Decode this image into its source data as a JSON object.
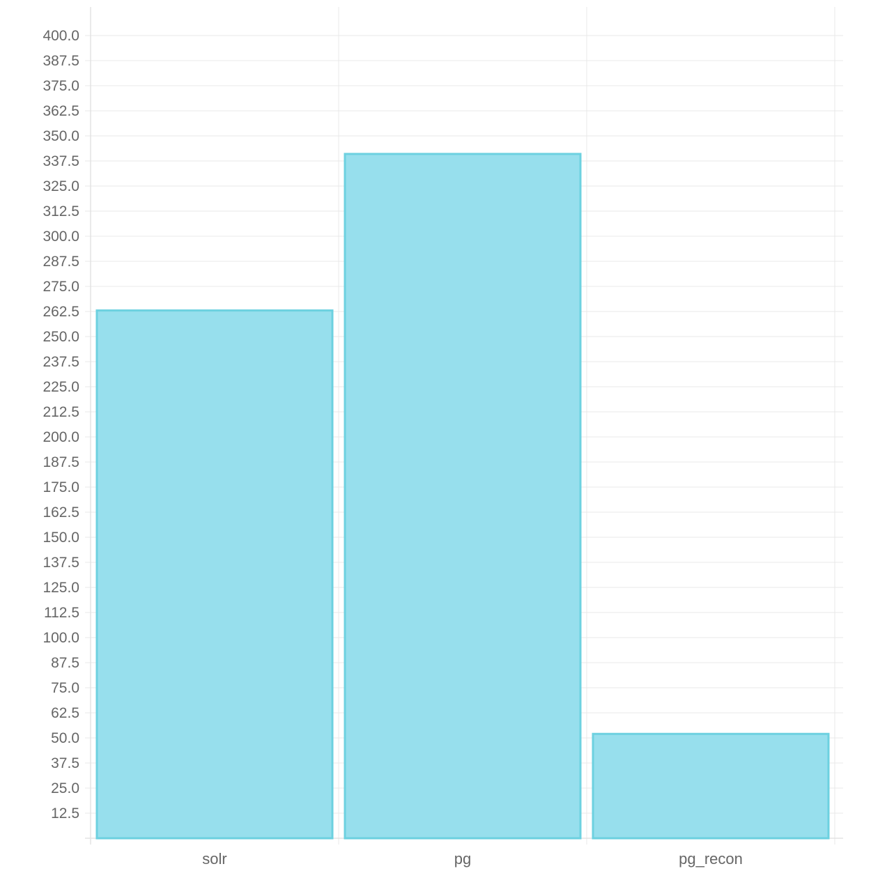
{
  "chart_data": {
    "type": "bar",
    "title": "",
    "xlabel": "",
    "ylabel": "",
    "categories": [
      "solr",
      "pg",
      "pg_recon"
    ],
    "series": [
      {
        "values": [
          263,
          341,
          52
        ]
      }
    ],
    "ylim": [
      0,
      400
    ],
    "ytick_step": 12.5,
    "ytick_labels": [
      "12.5",
      "25.0",
      "37.5",
      "50.0",
      "62.5",
      "75.0",
      "87.5",
      "100.0",
      "112.5",
      "125.0",
      "137.5",
      "150.0",
      "162.5",
      "175.0",
      "187.5",
      "200.0",
      "212.5",
      "225.0",
      "237.5",
      "250.0",
      "262.5",
      "275.0",
      "287.5",
      "300.0",
      "312.5",
      "325.0",
      "337.5",
      "350.0",
      "362.5",
      "375.0",
      "387.5",
      "400.0"
    ],
    "grid": true,
    "legend": "none",
    "colors": {
      "bar_fill": "#97dfed",
      "bar_stroke": "#6dd1e0"
    }
  }
}
